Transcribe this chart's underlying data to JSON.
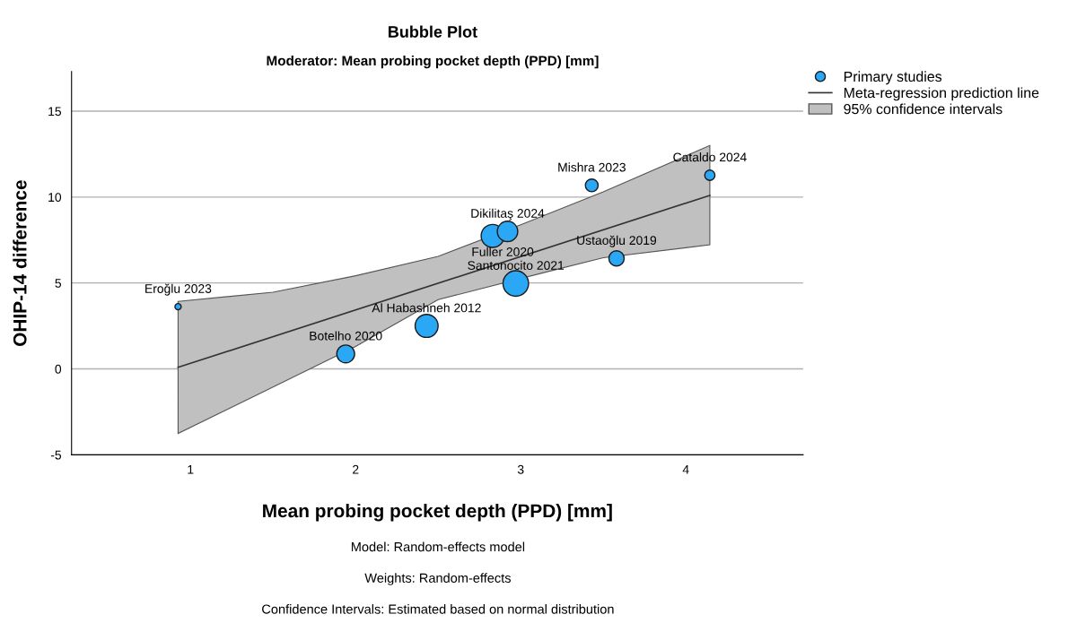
{
  "chart_data": {
    "type": "bubble",
    "title": "Bubble Plot",
    "subtitle": "Moderator: Mean probing pocket depth (PPD) [mm]",
    "xlabel": "Mean probing pocket depth (PPD) [mm]",
    "ylabel": "OHIP-14 difference",
    "xlim": [
      0.28,
      4.71
    ],
    "ylim": [
      -5,
      17.3
    ],
    "xticks": [
      1,
      2,
      3,
      4
    ],
    "yticks": [
      -5,
      0,
      5,
      10,
      15
    ],
    "grid": "y",
    "legend": "top right",
    "series": [
      {
        "type": "area",
        "name": "95% confidence intervals",
        "color": "#c0c0c0",
        "x": [
          0.925,
          1.5,
          2.0,
          2.5,
          3.0,
          3.5,
          4.145,
          4.145,
          3.5,
          3.15,
          2.5,
          2.0,
          1.5,
          0.925
        ],
        "values": [
          3.93,
          4.46,
          5.42,
          6.55,
          8.39,
          10.3,
          13.0,
          7.22,
          6.47,
          5.63,
          4.03,
          1.31,
          -1.05,
          -3.76
        ]
      },
      {
        "type": "line",
        "name": "Meta-regression prediction line",
        "color": "#333333",
        "x": [
          0.925,
          4.145
        ],
        "values": [
          0.09,
          10.1
        ]
      },
      {
        "name": "Primary studies",
        "color": "#2aa7f5",
        "x": [
          0.925,
          1.94,
          2.43,
          2.83,
          2.92,
          3.43,
          2.97,
          3.58,
          4.145
        ],
        "values": [
          3.62,
          0.87,
          2.5,
          7.74,
          8.0,
          10.68,
          4.97,
          6.43,
          11.27
        ],
        "sizes": [
          0.06,
          0.49,
          0.81,
          0.81,
          0.64,
          0.25,
          1,
          0.36,
          0.16
        ]
      }
    ],
    "annotations": [
      {
        "text": "Eroğlu 2023",
        "x": 0.925,
        "y": 3.62
      },
      {
        "text": "Botelho 2020",
        "x": 1.94,
        "y": 0.87
      },
      {
        "text": "Al Habashneh 2012",
        "x": 2.43,
        "y": 2.5
      },
      {
        "text": "Dikilitaş 2024",
        "x": 2.92,
        "y": 8.0
      },
      {
        "text": "Fuller 2020",
        "x": 2.83,
        "y": 7.74
      },
      {
        "text": "Santonocito 2021",
        "x": 2.97,
        "y": 4.97
      },
      {
        "text": "Mishra 2023",
        "x": 3.43,
        "y": 10.68
      },
      {
        "text": "Ustaoğlu 2019",
        "x": 3.58,
        "y": 6.43
      },
      {
        "text": "Cataldo 2024",
        "x": 4.145,
        "y": 11.27
      },
      "Model: Random-effects model",
      "Weights: Random-effects",
      "Confidence Intervals: Estimated based on normal distribution"
    ]
  }
}
